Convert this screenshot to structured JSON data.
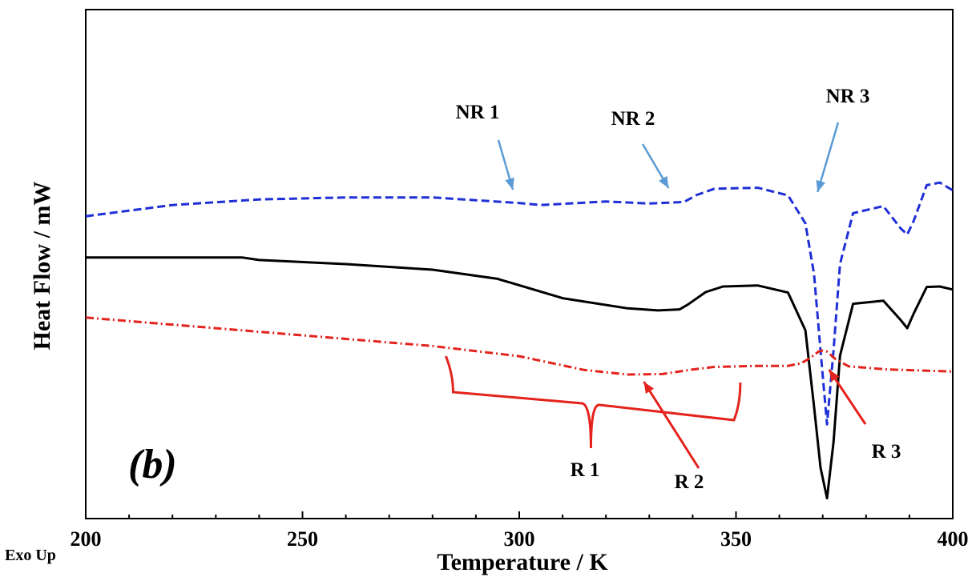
{
  "chart_data": {
    "type": "line",
    "title": "",
    "panel_label": "(b)",
    "xlabel": "Temperature / K",
    "ylabel": "Heat Flow / mW",
    "corner_label": "Exo Up",
    "xlim": [
      200,
      400
    ],
    "ylim": [
      0,
      100
    ],
    "xticks": [
      200,
      250,
      300,
      350,
      400
    ],
    "xtick_labels": [
      "200",
      "250",
      "300",
      "350",
      "400"
    ],
    "grid": false,
    "legend": "none",
    "series": [
      {
        "color": "#1f2fd6",
        "style": "dashed",
        "x": [
          200,
          220,
          240,
          260,
          280,
          300,
          305,
          320,
          330,
          338,
          341,
          345,
          355,
          362,
          366,
          368,
          369.5,
          371,
          372.5,
          374,
          377,
          384,
          388,
          389.5,
          391,
          394,
          397,
          400
        ],
        "y": [
          59.4,
          61.6,
          62.7,
          63.1,
          63.1,
          62.0,
          61.6,
          62.3,
          61.9,
          62.2,
          63.6,
          64.8,
          65.0,
          63.5,
          58.0,
          48.0,
          33.0,
          18.5,
          33.0,
          50.0,
          60.0,
          61.4,
          57.0,
          55.8,
          58.5,
          65.5,
          66.0,
          64.5
        ]
      },
      {
        "color": "#000000",
        "style": "solid",
        "x": [
          200,
          215,
          236,
          240,
          260,
          280,
          295,
          310,
          325,
          332,
          337,
          339,
          343,
          347,
          355,
          362,
          366,
          368,
          369.5,
          371,
          372.5,
          374,
          377,
          384,
          388,
          389.5,
          391,
          394,
          397,
          400
        ],
        "y": [
          51.3,
          51.3,
          51.3,
          50.8,
          50.0,
          48.9,
          47.1,
          43.3,
          41.3,
          40.9,
          41.1,
          42.1,
          44.5,
          45.6,
          45.8,
          44.4,
          37.0,
          22.0,
          10.0,
          4.0,
          15.0,
          32.0,
          42.2,
          42.8,
          39.0,
          37.4,
          40.3,
          45.5,
          45.6,
          45.0
        ]
      },
      {
        "color": "#e3231c",
        "style": "dashdot",
        "x": [
          200,
          230,
          260,
          280,
          300,
          315,
          325,
          333,
          340,
          345,
          355,
          362,
          365,
          367,
          369,
          370,
          371,
          373,
          376,
          385,
          400
        ],
        "y": [
          39.5,
          37.4,
          35.3,
          33.9,
          31.9,
          29.2,
          28.3,
          28.4,
          29.3,
          29.8,
          30.0,
          30.0,
          30.5,
          31.5,
          32.8,
          33.0,
          32.8,
          31.3,
          29.9,
          29.3,
          28.9
        ]
      }
    ],
    "annotations": [
      {
        "text": "NR 1",
        "color": "#000000",
        "arrow_color": "#5b9bd5",
        "points_to_x": 300
      },
      {
        "text": "NR 2",
        "color": "#000000",
        "arrow_color": "#5b9bd5",
        "points_to_x": 335
      },
      {
        "text": "NR 3",
        "color": "#000000",
        "arrow_color": "#5b9bd5",
        "points_to_x": 369
      },
      {
        "text": "R 1",
        "color": "#000000",
        "arrow_color": "#e3231c",
        "range": [
          284,
          351
        ]
      },
      {
        "text": "R 2",
        "color": "#000000",
        "arrow_color": "#e3231c",
        "points_to_x": 328
      },
      {
        "text": "R 3",
        "color": "#000000",
        "arrow_color": "#e3231c",
        "points_to_x": 370
      }
    ]
  }
}
